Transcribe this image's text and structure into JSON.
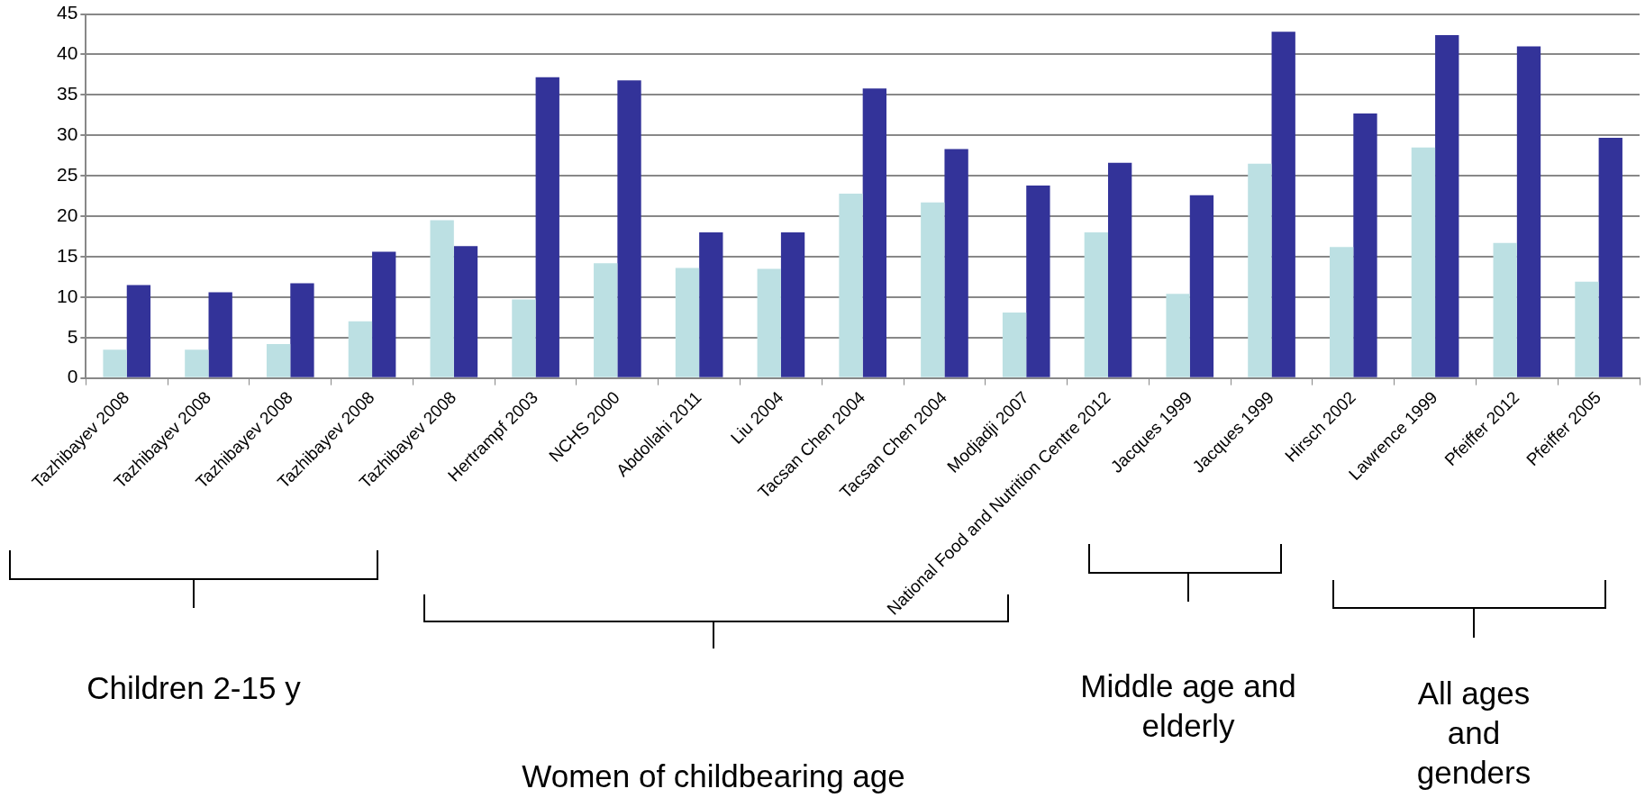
{
  "chart_data": {
    "type": "bar",
    "categories": [
      "Tazhibayev 2008",
      "Tazhibayev 2008",
      "Tazhibayev 2008",
      "Tazhibayev 2008",
      "Tazhibayev 2008",
      "Hertrampf 2003",
      "NCHS 2000",
      "Abdollahi 2011",
      "Liu 2004",
      "Tacsan Chen 2004",
      "Tacsan Chen 2004",
      "Modjadji 2007",
      "National Food and Nutrition Centre 2012",
      "Jacques 1999",
      "Jacques 1999",
      "Hirsch 2002",
      "Lawrence 1999",
      "Pfeiffer 2012",
      "Pfeiffer 2005"
    ],
    "series": [
      {
        "color": "#bce0e3",
        "values": [
          3.5,
          3.5,
          4.2,
          7.0,
          19.5,
          9.7,
          14.2,
          13.6,
          13.5,
          22.8,
          21.7,
          8.1,
          18.0,
          10.4,
          26.5,
          16.2,
          28.5,
          16.7,
          11.9
        ]
      },
      {
        "color": "#333399",
        "values": [
          11.5,
          10.6,
          11.7,
          15.6,
          16.3,
          37.2,
          36.8,
          18.0,
          18.0,
          35.8,
          28.3,
          23.8,
          26.6,
          22.6,
          42.8,
          32.7,
          42.4,
          41.0,
          29.7
        ]
      }
    ],
    "ylim": [
      0,
      45
    ],
    "yticks": [
      0,
      5,
      10,
      15,
      20,
      25,
      30,
      35,
      40,
      45
    ],
    "grid": "y",
    "legend": false,
    "annotations": [
      "Children 2-15 y",
      "Women of childbearing age",
      "Middle age and elderly",
      "All ages and genders"
    ]
  }
}
